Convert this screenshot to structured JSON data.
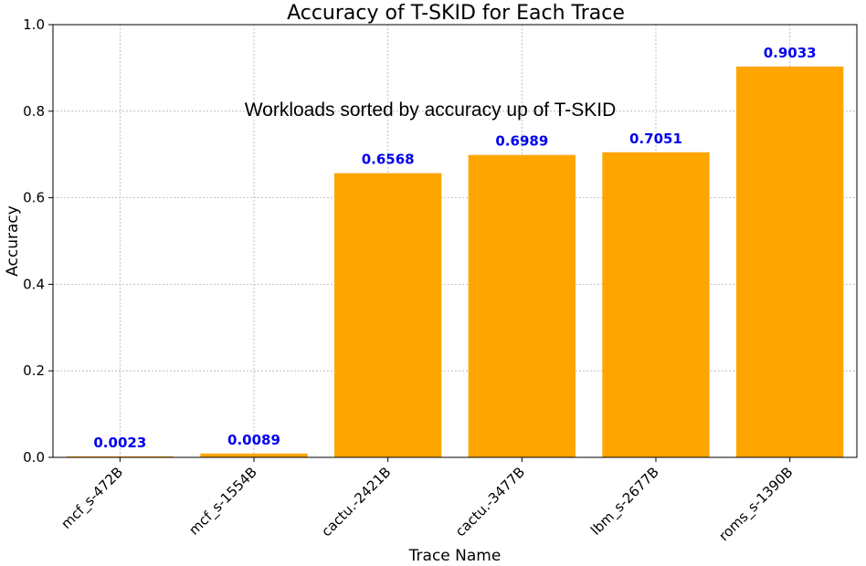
{
  "chart_data": {
    "type": "bar",
    "title": "Accuracy of T-SKID for Each Trace",
    "annotation": "Workloads sorted by accuracy up of T-SKID",
    "xlabel": "Trace Name",
    "ylabel": "Accuracy",
    "categories": [
      "mcf_s-472B",
      "mcf_s-1554B",
      "cactu.-2421B",
      "cactu.-3477B",
      "lbm_s-2677B",
      "roms_s-1390B"
    ],
    "values": [
      0.0023,
      0.0089,
      0.6568,
      0.6989,
      0.7051,
      0.9033
    ],
    "value_labels": [
      "0.0023",
      "0.0089",
      "0.6568",
      "0.6989",
      "0.7051",
      "0.9033"
    ],
    "ylim": [
      0,
      1.0
    ],
    "yticks": [
      0.0,
      0.2,
      0.4,
      0.6,
      0.8,
      1.0
    ],
    "ytick_labels": [
      "0.0",
      "0.2",
      "0.4",
      "0.6",
      "0.8",
      "1.0"
    ],
    "grid": true,
    "colors": {
      "bar": "#FFA500",
      "bar_label": "#0000EE",
      "grid": "#b0b0b0"
    }
  }
}
